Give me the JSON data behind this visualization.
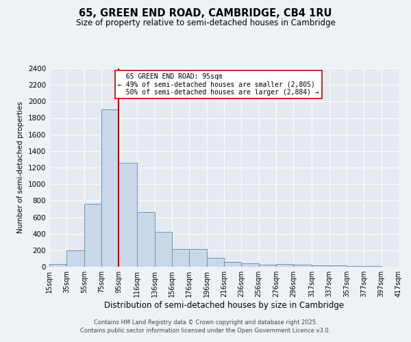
{
  "title": "65, GREEN END ROAD, CAMBRIDGE, CB4 1RU",
  "subtitle": "Size of property relative to semi-detached houses in Cambridge",
  "xlabel": "Distribution of semi-detached houses by size in Cambridge",
  "ylabel": "Number of semi-detached properties",
  "bins": [
    "15sqm",
    "35sqm",
    "55sqm",
    "75sqm",
    "95sqm",
    "116sqm",
    "136sqm",
    "156sqm",
    "176sqm",
    "196sqm",
    "216sqm",
    "236sqm",
    "256sqm",
    "276sqm",
    "296sqm",
    "317sqm",
    "337sqm",
    "357sqm",
    "377sqm",
    "397sqm",
    "417sqm"
  ],
  "bin_edges": [
    15,
    35,
    55,
    75,
    95,
    116,
    136,
    156,
    176,
    196,
    216,
    236,
    256,
    276,
    296,
    317,
    337,
    357,
    377,
    397,
    417
  ],
  "values": [
    30,
    200,
    760,
    1900,
    1260,
    660,
    420,
    215,
    215,
    105,
    55,
    45,
    25,
    30,
    25,
    15,
    15,
    5,
    5,
    2,
    0
  ],
  "bar_color": "#c8d8e8",
  "bar_edge_color": "#5a8ab0",
  "property_size": 95,
  "property_label": "65 GREEN END ROAD: 95sqm",
  "pct_smaller": 49,
  "n_smaller": 2805,
  "pct_larger": 50,
  "n_larger": 2884,
  "vline_color": "#cc0000",
  "annotation_box_edge_color": "#cc0000",
  "ylim": [
    0,
    2400
  ],
  "yticks": [
    0,
    200,
    400,
    600,
    800,
    1000,
    1200,
    1400,
    1600,
    1800,
    2000,
    2200,
    2400
  ],
  "bg_color": "#eef2f6",
  "plot_bg_color": "#e4eaf0",
  "grid_color": "#ffffff",
  "footer1": "Contains HM Land Registry data © Crown copyright and database right 2025.",
  "footer2": "Contains public sector information licensed under the Open Government Licence v3.0."
}
